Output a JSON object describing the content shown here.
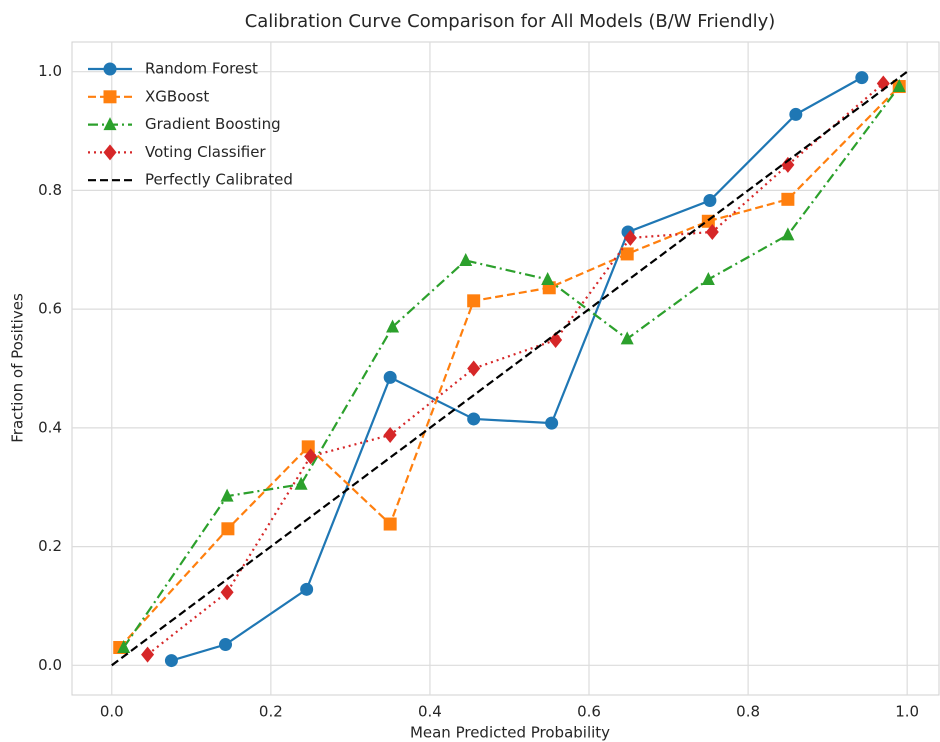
{
  "chart_data": {
    "type": "line",
    "title": "Calibration Curve Comparison for All Models (B/W Friendly)",
    "x_label": "Mean Predicted Probability",
    "y_label": "Fraction of Positives",
    "xlim": [
      -0.05,
      1.04
    ],
    "ylim": [
      -0.05,
      1.05
    ],
    "xticks": [
      {
        "value": 0,
        "label": "0.0"
      },
      0.2,
      0.4,
      0.6,
      0.8,
      {
        "value": 1,
        "label": "1.0"
      }
    ],
    "yticks": [
      {
        "value": 0,
        "label": "0.0"
      },
      0.2,
      0.4,
      0.6,
      0.8,
      {
        "value": 1,
        "label": "1.0"
      }
    ],
    "grid": true,
    "legend": "upper-left",
    "series": [
      {
        "name": "Random Forest",
        "color": "#1f77b4",
        "linestyle": "solid",
        "marker": "circle",
        "x": [
          0.075,
          0.143,
          0.245,
          0.35,
          0.455,
          0.553,
          0.649,
          0.752,
          0.86,
          0.943
        ],
        "values": [
          0.008,
          0.035,
          0.128,
          0.485,
          0.415,
          0.408,
          0.73,
          0.783,
          0.928,
          0.99
        ]
      },
      {
        "name": "XGBoost",
        "color": "#ff7f0e",
        "linestyle": "dashed",
        "marker": "square",
        "x": [
          0.01,
          0.146,
          0.247,
          0.35,
          0.455,
          0.55,
          0.648,
          0.75,
          0.85,
          0.99
        ],
        "values": [
          0.03,
          0.23,
          0.368,
          0.238,
          0.614,
          0.636,
          0.693,
          0.748,
          0.785,
          0.975
        ]
      },
      {
        "name": "Gradient Boosting",
        "color": "#2ca02c",
        "linestyle": "dashdot",
        "marker": "triangle",
        "x": [
          0.015,
          0.145,
          0.238,
          0.353,
          0.445,
          0.548,
          0.648,
          0.75,
          0.85,
          0.99
        ],
        "values": [
          0.03,
          0.285,
          0.305,
          0.57,
          0.682,
          0.65,
          0.55,
          0.65,
          0.725,
          0.975
        ]
      },
      {
        "name": "Voting Classifier",
        "color": "#d62728",
        "linestyle": "dotted",
        "marker": "diamond",
        "x": [
          0.045,
          0.145,
          0.25,
          0.35,
          0.455,
          0.558,
          0.652,
          0.755,
          0.85,
          0.97
        ],
        "values": [
          0.018,
          0.123,
          0.352,
          0.388,
          0.5,
          0.548,
          0.72,
          0.73,
          0.843,
          0.98
        ]
      },
      {
        "name": "Perfectly Calibrated",
        "color": "#000000",
        "linestyle": "dashed",
        "marker": "none",
        "x": [
          0,
          1
        ],
        "values": [
          0,
          1
        ]
      }
    ]
  }
}
